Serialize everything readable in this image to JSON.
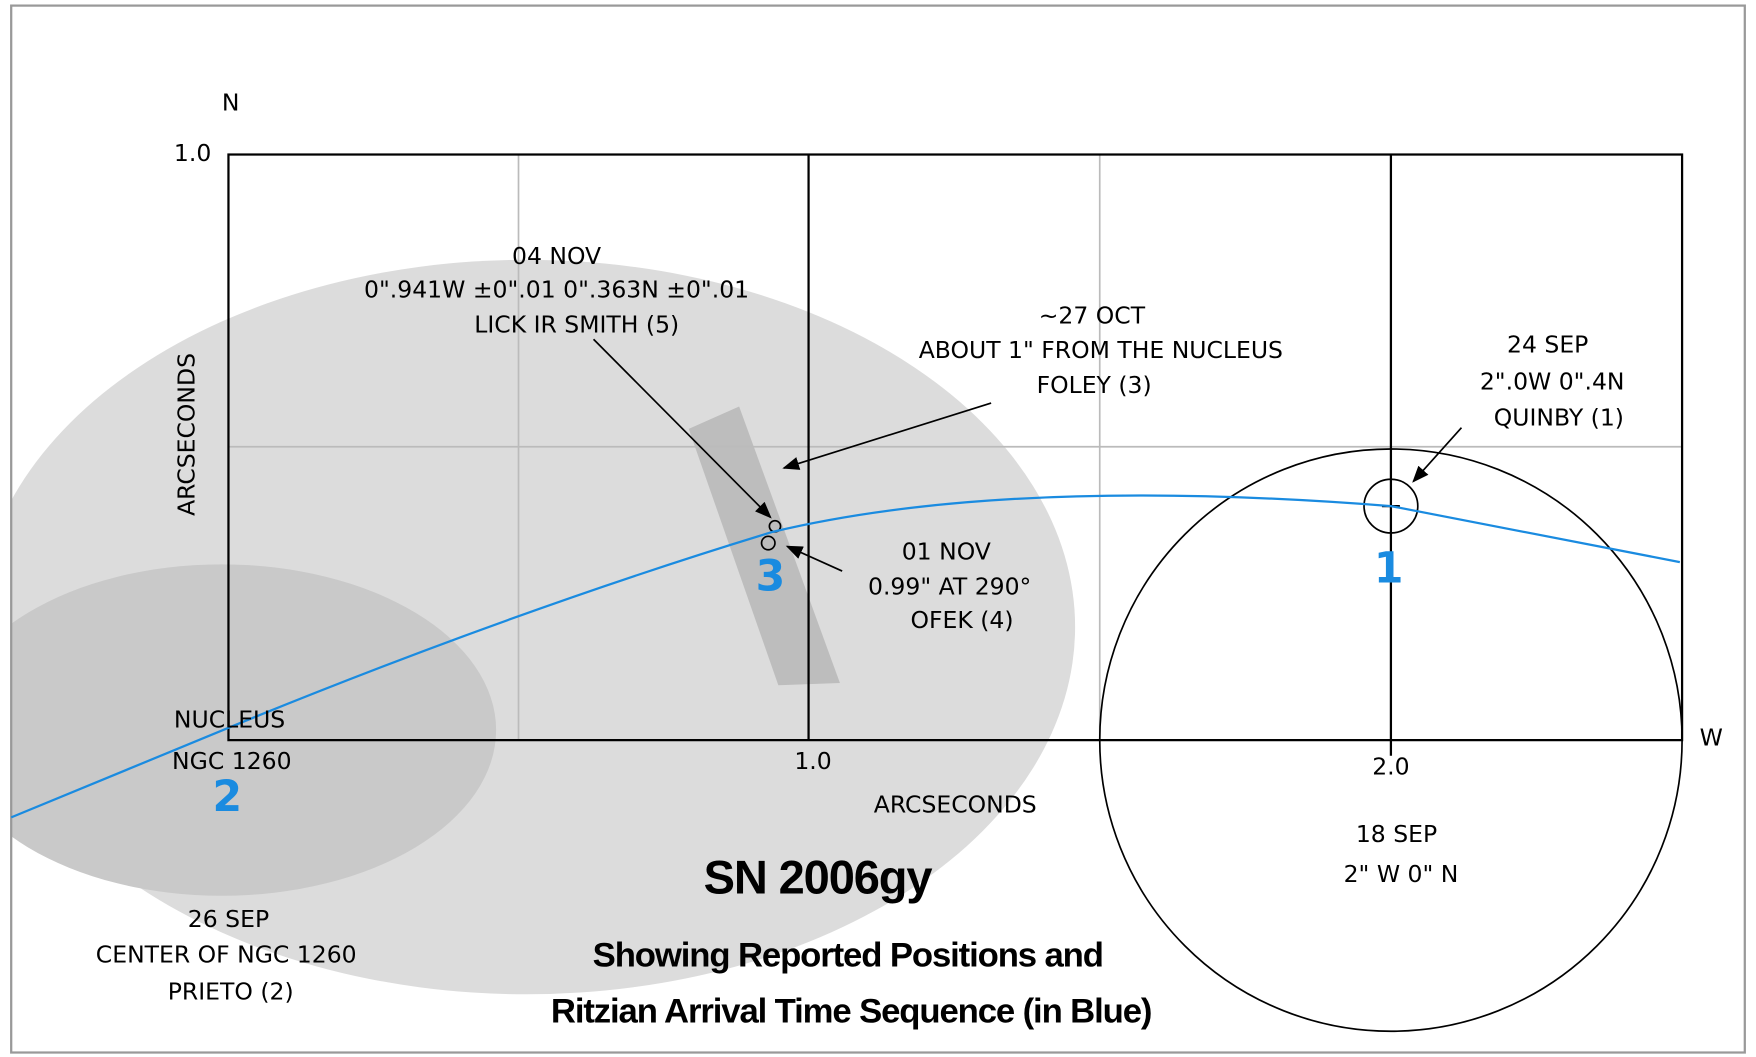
{
  "compass": {
    "north": "N",
    "west": "W"
  },
  "axes": {
    "y_top_tick": "1.0",
    "x_mid_tick": "1.0",
    "x_right_tick": "2.0",
    "y_title": "ARCSECONDS",
    "x_title": "ARCSECONDS"
  },
  "markers": [
    "1",
    "2",
    "3"
  ],
  "annotations": {
    "nov04": [
      "04 NOV",
      "0\".941W ±0\".01   0\".363N ±0\".01",
      "LICK IR  SMITH (5)"
    ],
    "oct27": [
      "~27 OCT",
      "ABOUT  1\"  FROM  THE  NUCLEUS",
      "FOLEY  (3)"
    ],
    "sep24": [
      "24 SEP",
      "2\".0W  0\".4N",
      "QUINBY (1)"
    ],
    "nov01": [
      "01  NOV",
      "0.99\"  AT  290°",
      "OFEK  (4)"
    ],
    "nucleus": [
      "NUCLEUS",
      "NGC  1260"
    ],
    "sep18": [
      "18 SEP",
      "2\" W   0\" N"
    ],
    "sep26": [
      "26 SEP",
      "CENTER OF  NGC 1260",
      "PRIETO (2)"
    ]
  },
  "title": "SN 2006gy",
  "subtitle": [
    "Showing Reported Positions and",
    "Ritzian Arrival Time Sequence  (in Blue)"
  ]
}
